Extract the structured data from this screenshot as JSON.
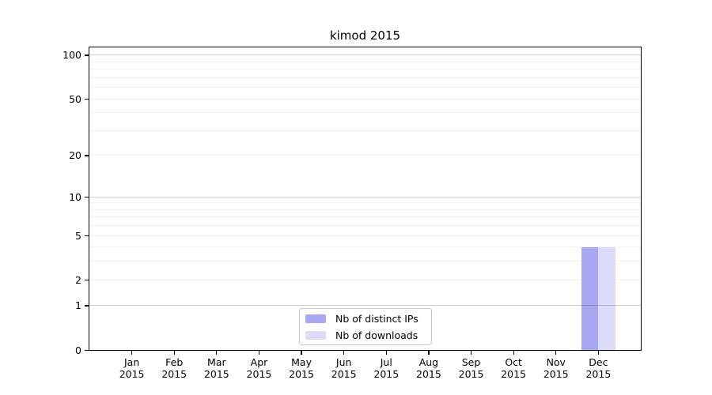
{
  "chart_data": {
    "type": "bar",
    "title": "kimod 2015",
    "x_axis": {
      "months": [
        "Jan",
        "Feb",
        "Mar",
        "Apr",
        "May",
        "Jun",
        "Jul",
        "Aug",
        "Sep",
        "Oct",
        "Nov",
        "Dec"
      ],
      "year": "2015"
    },
    "y_axis": {
      "scale": "log1p",
      "tick_labels": [
        "0",
        "1",
        "2",
        "5",
        "10",
        "20",
        "50",
        "100"
      ],
      "tick_values": [
        0,
        1,
        2,
        5,
        10,
        20,
        50,
        100
      ],
      "major_grid_values": [
        1,
        10,
        100
      ],
      "minor_grid_values": [
        2,
        3,
        4,
        5,
        6,
        7,
        8,
        9,
        20,
        30,
        40,
        50,
        60,
        70,
        80,
        90
      ],
      "ylim": [
        0,
        113
      ],
      "grid": true
    },
    "series": [
      {
        "name": "Nb of distinct IPs",
        "color": "#a7a7f2",
        "values": [
          0,
          0,
          0,
          0,
          0,
          0,
          0,
          0,
          0,
          0,
          0,
          4
        ]
      },
      {
        "name": "Nb of downloads",
        "color": "#dcdcf8",
        "values": [
          0,
          0,
          0,
          0,
          0,
          0,
          0,
          0,
          0,
          0,
          0,
          4
        ]
      }
    ],
    "legend": {
      "position": "bottom-center",
      "entries": [
        "Nb of distinct IPs",
        "Nb of downloads"
      ]
    }
  }
}
